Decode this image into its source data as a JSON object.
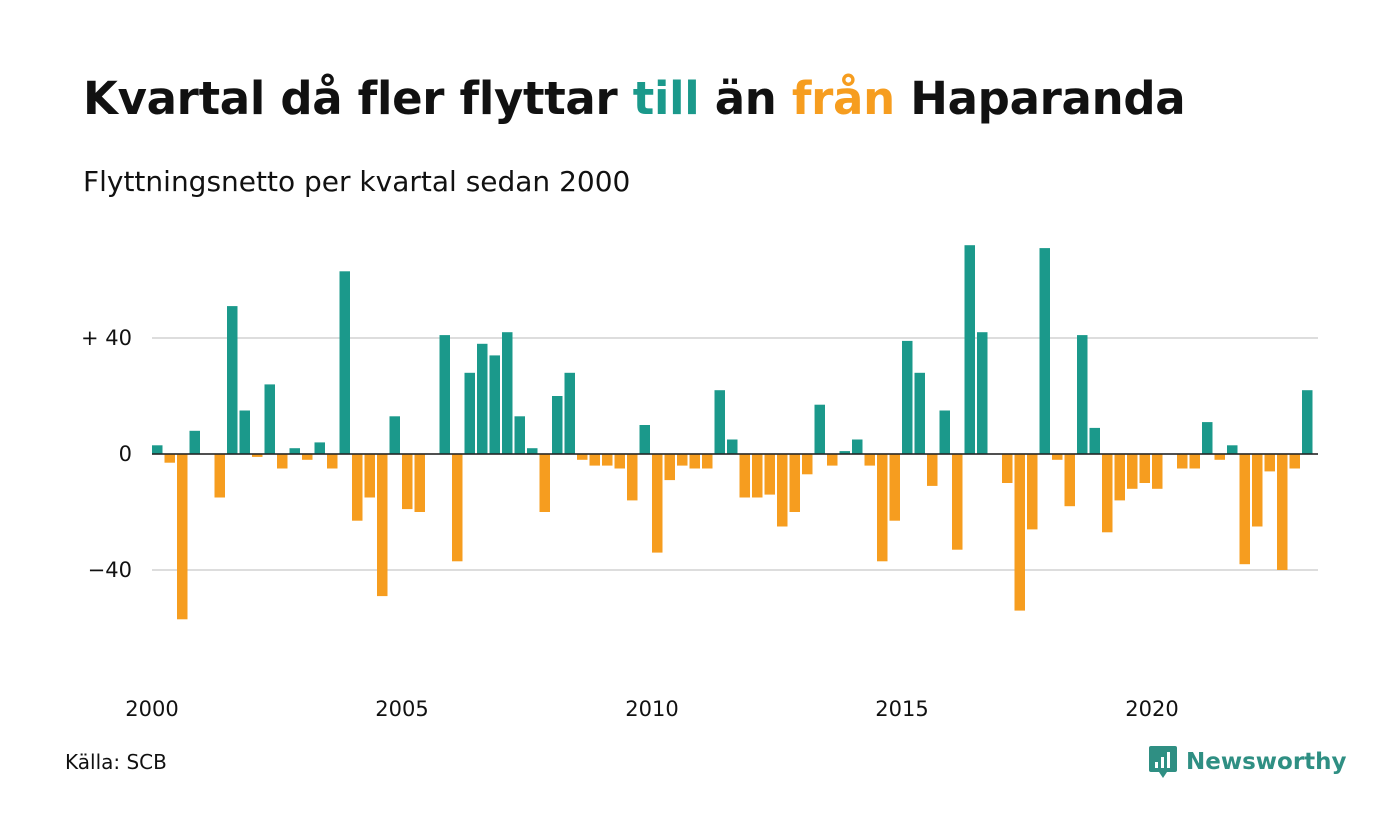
{
  "title": {
    "part1": "Kvartal då fler flyttar ",
    "part2": "till",
    "part3": " än ",
    "part4": "från",
    "part5": " Haparanda"
  },
  "subtitle": "Flyttningsnetto per kvartal sedan 2000",
  "source": "Källa: SCB",
  "brand": {
    "name": "Newsworthy",
    "icon": "newsworthy-logo-icon"
  },
  "colors": {
    "positive": "#1b998b",
    "negative": "#f69d1f",
    "brand": "#2f8f83",
    "grid": "#dddddd"
  },
  "chart_data": {
    "type": "bar",
    "title": "Kvartal då fler flyttar till än från Haparanda",
    "subtitle": "Flyttningsnetto per kvartal sedan 2000",
    "x_start_year": 2000,
    "x_ticks": [
      "2000",
      "2005",
      "2010",
      "2015",
      "2020"
    ],
    "y_ticks": [
      {
        "value": 40,
        "label": "+ 40"
      },
      {
        "value": 0,
        "label": "0"
      },
      {
        "value": -40,
        "label": "−40"
      }
    ],
    "ylim": [
      -72,
      72
    ],
    "grid": true,
    "series": [
      {
        "values": [
          3,
          -3,
          -57,
          8,
          0,
          -15,
          51,
          15,
          -1,
          24,
          -5,
          2,
          -2,
          4,
          -5,
          63,
          -23,
          -15,
          -49,
          13,
          -19,
          -20,
          0,
          41,
          -37,
          28,
          38,
          34,
          42,
          13,
          2,
          -20,
          20,
          28,
          -2,
          -4,
          -4,
          -5,
          -16,
          10,
          -34,
          -9,
          -4,
          -5,
          -5,
          22,
          5,
          -15,
          -15,
          -14,
          -25,
          -20,
          -7,
          17,
          -4,
          1,
          5,
          -4,
          -37,
          -23,
          39,
          28,
          -11,
          15,
          -33,
          72,
          42,
          0,
          -10,
          -54,
          -26,
          71,
          -2,
          -18,
          41,
          9,
          -27,
          -16,
          -12,
          -10,
          -12,
          0,
          -5,
          -5,
          11,
          -2,
          3,
          -38,
          -25,
          -6,
          -40,
          -5,
          22
        ]
      }
    ]
  }
}
